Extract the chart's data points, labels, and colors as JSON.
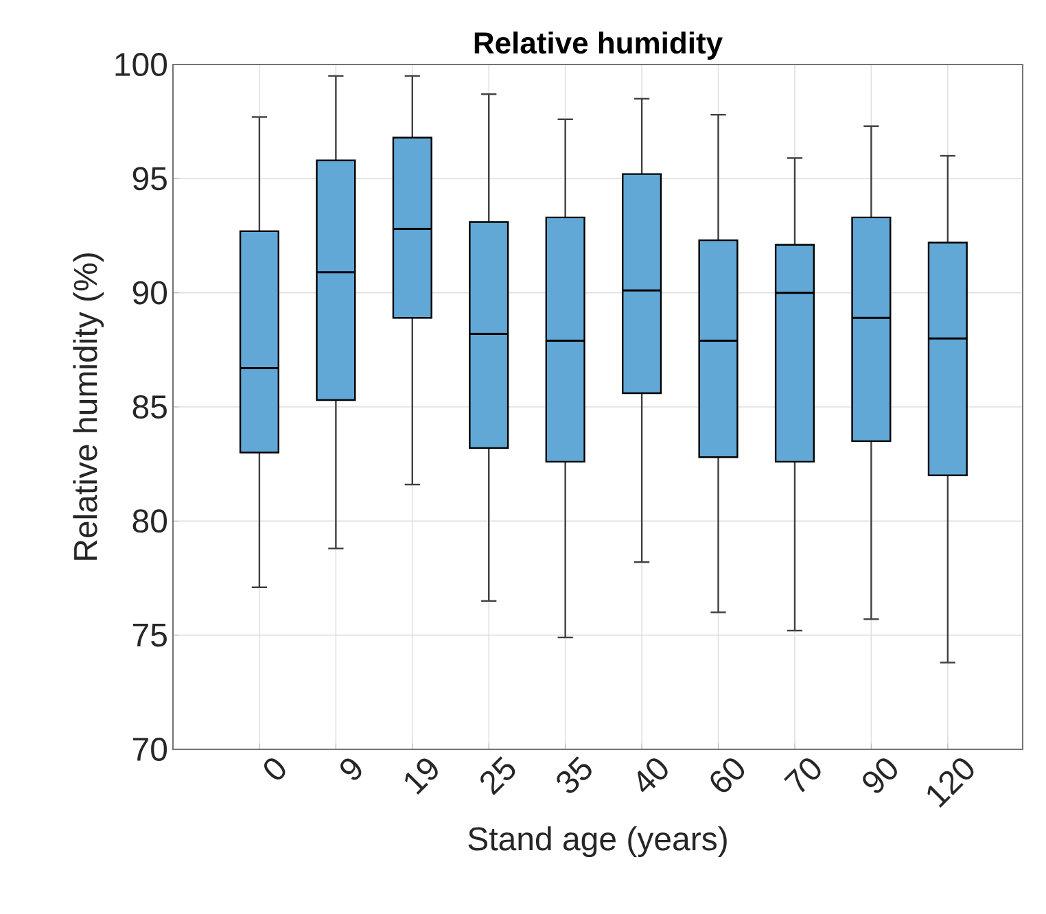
{
  "chart_data": {
    "type": "box",
    "title": "Relative humidity",
    "xlabel": "Stand age (years)",
    "ylabel": "Relative humidity (%)",
    "categories": [
      "0",
      "9",
      "19",
      "25",
      "35",
      "40",
      "60",
      "70",
      "90",
      "120"
    ],
    "color": "#62a8d7",
    "boxes": [
      {
        "low": 77.1,
        "q1": 83.0,
        "median": 86.7,
        "q3": 92.7,
        "high": 97.7
      },
      {
        "low": 78.8,
        "q1": 85.3,
        "median": 90.9,
        "q3": 95.8,
        "high": 99.5
      },
      {
        "low": 81.6,
        "q1": 88.9,
        "median": 92.8,
        "q3": 96.8,
        "high": 99.5
      },
      {
        "low": 76.5,
        "q1": 83.2,
        "median": 88.2,
        "q3": 93.1,
        "high": 98.7
      },
      {
        "low": 74.9,
        "q1": 82.6,
        "median": 87.9,
        "q3": 93.3,
        "high": 97.6
      },
      {
        "low": 78.2,
        "q1": 85.6,
        "median": 90.1,
        "q3": 95.2,
        "high": 98.5
      },
      {
        "low": 76.0,
        "q1": 82.8,
        "median": 87.9,
        "q3": 92.3,
        "high": 97.8
      },
      {
        "low": 75.2,
        "q1": 82.6,
        "median": 90.0,
        "q3": 92.1,
        "high": 95.9
      },
      {
        "low": 75.7,
        "q1": 83.5,
        "median": 88.9,
        "q3": 93.3,
        "high": 97.3
      },
      {
        "low": 73.8,
        "q1": 82.0,
        "median": 88.0,
        "q3": 92.2,
        "high": 96.0
      }
    ],
    "ylim": [
      70,
      100
    ],
    "yticks": [
      70,
      75,
      80,
      85,
      90,
      95,
      100
    ],
    "grid": true
  }
}
